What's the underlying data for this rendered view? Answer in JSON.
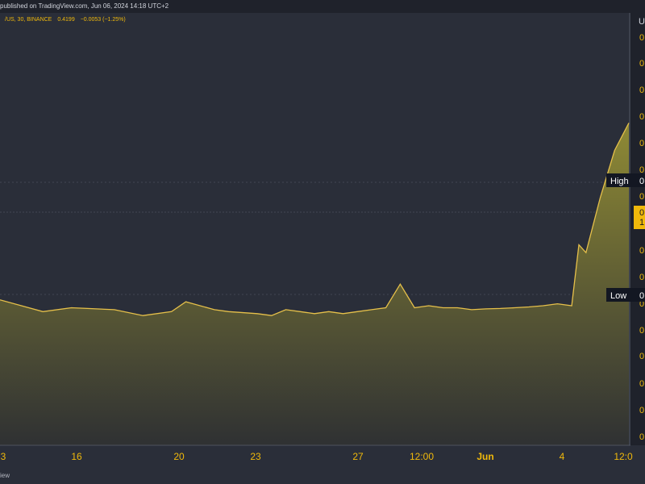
{
  "header": {
    "published_text": "published on TradingView.com, Jun 06, 2024 14:18 UTC+2"
  },
  "legend": {
    "symbol_text": "/US, 30, BINANCE",
    "last_price": "0.4199",
    "change_text": "−0.0053 (−1.25%)"
  },
  "footer": {
    "brand_text": "iew"
  },
  "colors": {
    "background": "#2a2e39",
    "area_line": "#e6c04a",
    "area_fill_top": "#8f8a35",
    "area_fill_bottom": "#2f3133",
    "label_bg": "#131722",
    "price_tag_bg": "#f0b90b",
    "axis_text": "#f0b90b"
  },
  "right_axis": {
    "top_label": "U",
    "tick_labels": [
      "0",
      "0",
      "0",
      "0",
      "0",
      "0",
      "0",
      "0",
      "0",
      "0",
      "0",
      "0",
      "0",
      "0",
      "0",
      "0"
    ],
    "last_price_tag": [
      "0",
      "1"
    ]
  },
  "chart_data": {
    "type": "area",
    "x_tick_labels": [
      "3",
      "16",
      "20",
      "23",
      "27",
      "12:00",
      "Jun",
      "4",
      "12:0"
    ],
    "annotations": {
      "high_label": "High",
      "low_label": "Low",
      "high_value": "0",
      "low_value": "0"
    },
    "x": [
      0,
      3,
      5,
      8,
      10,
      12,
      13,
      15,
      16,
      18,
      19,
      20,
      21,
      22,
      23,
      24,
      25,
      26,
      27,
      28,
      29,
      30,
      31,
      32,
      33,
      34,
      35,
      36,
      37,
      38,
      39,
      40,
      40.5,
      41,
      42,
      43,
      44
    ],
    "y": [
      11.2,
      10.9,
      11.0,
      10.95,
      10.8,
      10.9,
      11.15,
      10.95,
      10.9,
      10.85,
      10.8,
      10.95,
      10.9,
      10.85,
      10.9,
      10.85,
      10.9,
      10.95,
      11.0,
      11.6,
      11.0,
      11.05,
      11.0,
      11.0,
      10.95,
      10.97,
      10.98,
      11.0,
      11.02,
      11.05,
      11.1,
      11.05,
      12.6,
      12.4,
      13.8,
      15.0,
      15.7
    ],
    "ylim": [
      7.5,
      18.5
    ],
    "high": 15.1,
    "low": 10.2,
    "last": 14.4,
    "grid": false
  }
}
